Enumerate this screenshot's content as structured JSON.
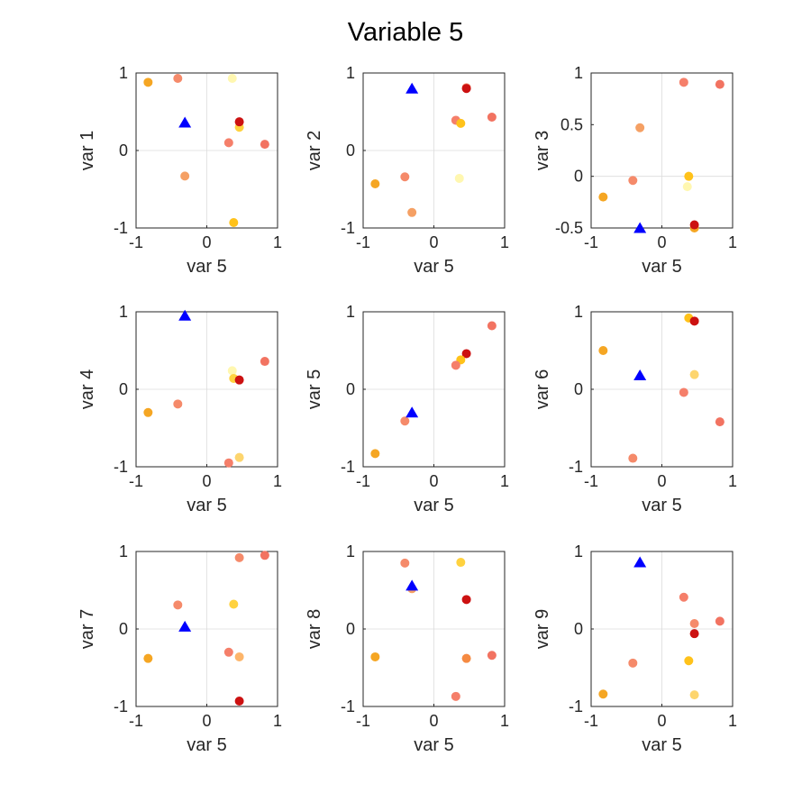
{
  "figure": {
    "title": "Variable 5"
  },
  "colors": {
    "highlight": "#0000ff",
    "axis": "#262626",
    "zeroline": "#dcdcdc",
    "points": [
      "#f5a623",
      "#f58a6a",
      "#fff7b0",
      "#ffd23f",
      "#cc1111",
      "#f57f6a",
      "#f27361",
      "#fdd56e",
      "#f46c6a"
    ]
  },
  "chart_data": [
    {
      "type": "scatter",
      "xlabel": "var 5",
      "ylabel": "var 1",
      "xlim": [
        -1,
        1
      ],
      "ylim": [
        -1,
        1
      ],
      "xticks": [
        -1,
        0,
        1
      ],
      "yticks": [
        -1,
        0,
        1
      ],
      "xtick_labels": [
        "-1",
        "0",
        "1"
      ],
      "ytick_labels": [
        "-1",
        "0",
        "1"
      ],
      "points": [
        {
          "x": -0.83,
          "y": 0.88,
          "color": "#f5a623"
        },
        {
          "x": -0.41,
          "y": 0.93,
          "color": "#f58a6a"
        },
        {
          "x": 0.36,
          "y": 0.93,
          "color": "#fff7b0"
        },
        {
          "x": 0.46,
          "y": 0.3,
          "color": "#ffd23f"
        },
        {
          "x": 0.46,
          "y": 0.37,
          "color": "#cc1111"
        },
        {
          "x": 0.31,
          "y": 0.1,
          "color": "#f57f6a"
        },
        {
          "x": 0.82,
          "y": 0.08,
          "color": "#f27361"
        },
        {
          "x": -0.31,
          "y": -0.33,
          "color": "#f5a064"
        },
        {
          "x": 0.38,
          "y": -0.93,
          "color": "#ffc21a"
        }
      ],
      "highlight": {
        "x": -0.31,
        "y": 0.36
      }
    },
    {
      "type": "scatter",
      "xlabel": "var 5",
      "ylabel": "var 2",
      "xlim": [
        -1,
        1
      ],
      "ylim": [
        -1,
        1
      ],
      "xticks": [
        -1,
        0,
        1
      ],
      "yticks": [
        -1,
        0,
        1
      ],
      "xtick_labels": [
        "-1",
        "0",
        "1"
      ],
      "ytick_labels": [
        "-1",
        "0",
        "1"
      ],
      "points": [
        {
          "x": 0.46,
          "y": 0.81,
          "color": "#f58a6a"
        },
        {
          "x": 0.46,
          "y": 0.8,
          "color": "#cc1111"
        },
        {
          "x": 0.82,
          "y": 0.43,
          "color": "#f27361"
        },
        {
          "x": 0.31,
          "y": 0.39,
          "color": "#f57f6a"
        },
        {
          "x": 0.38,
          "y": 0.35,
          "color": "#ffc21a"
        },
        {
          "x": 0.36,
          "y": -0.36,
          "color": "#fff7b0"
        },
        {
          "x": -0.41,
          "y": -0.34,
          "color": "#f58a6a"
        },
        {
          "x": -0.83,
          "y": -0.43,
          "color": "#f5a623"
        },
        {
          "x": -0.31,
          "y": -0.8,
          "color": "#f5a064"
        }
      ],
      "highlight": {
        "x": -0.31,
        "y": 0.8
      }
    },
    {
      "type": "scatter",
      "xlabel": "var 5",
      "ylabel": "var 3",
      "xlim": [
        -1,
        1
      ],
      "ylim": [
        -0.5,
        1
      ],
      "xticks": [
        -1,
        0,
        1
      ],
      "yticks": [
        -0.5,
        0,
        0.5,
        1
      ],
      "xtick_labels": [
        "-1",
        "0",
        "1"
      ],
      "ytick_labels": [
        "-0.5",
        "0",
        "0.5",
        "1"
      ],
      "points": [
        {
          "x": 0.31,
          "y": 0.91,
          "color": "#f57f6a"
        },
        {
          "x": 0.82,
          "y": 0.89,
          "color": "#f27361"
        },
        {
          "x": -0.31,
          "y": 0.47,
          "color": "#f5a064"
        },
        {
          "x": 0.38,
          "y": 0.0,
          "color": "#ffc21a"
        },
        {
          "x": -0.41,
          "y": -0.04,
          "color": "#f58a6a"
        },
        {
          "x": 0.36,
          "y": -0.1,
          "color": "#fff7b0"
        },
        {
          "x": -0.83,
          "y": -0.2,
          "color": "#f5a623"
        },
        {
          "x": 0.46,
          "y": -0.5,
          "color": "#f5a623"
        },
        {
          "x": 0.46,
          "y": -0.47,
          "color": "#cc1111"
        }
      ],
      "highlight": {
        "x": -0.31,
        "y": -0.5
      }
    },
    {
      "type": "scatter",
      "xlabel": "var 5",
      "ylabel": "var 4",
      "xlim": [
        -1,
        1
      ],
      "ylim": [
        -1,
        1
      ],
      "xticks": [
        -1,
        0,
        1
      ],
      "yticks": [
        -1,
        0,
        1
      ],
      "xtick_labels": [
        "-1",
        "0",
        "1"
      ],
      "ytick_labels": [
        "-1",
        "0",
        "1"
      ],
      "points": [
        {
          "x": 0.82,
          "y": 0.36,
          "color": "#f27361"
        },
        {
          "x": 0.36,
          "y": 0.24,
          "color": "#fff7b0"
        },
        {
          "x": 0.38,
          "y": 0.14,
          "color": "#ffd23f"
        },
        {
          "x": 0.46,
          "y": 0.12,
          "color": "#cc1111"
        },
        {
          "x": -0.41,
          "y": -0.19,
          "color": "#f58a6a"
        },
        {
          "x": -0.83,
          "y": -0.3,
          "color": "#f5a623"
        },
        {
          "x": 0.46,
          "y": -0.88,
          "color": "#fdd56e"
        },
        {
          "x": 0.31,
          "y": -0.95,
          "color": "#f57f6a"
        }
      ],
      "highlight": {
        "x": -0.31,
        "y": 0.95
      }
    },
    {
      "type": "scatter",
      "xlabel": "var 5",
      "ylabel": "var 5",
      "xlim": [
        -1,
        1
      ],
      "ylim": [
        -1,
        1
      ],
      "xticks": [
        -1,
        0,
        1
      ],
      "yticks": [
        -1,
        0,
        1
      ],
      "xtick_labels": [
        "-1",
        "0",
        "1"
      ],
      "ytick_labels": [
        "-1",
        "0",
        "1"
      ],
      "points": [
        {
          "x": 0.82,
          "y": 0.82,
          "color": "#f27361"
        },
        {
          "x": 0.46,
          "y": 0.46,
          "color": "#cc1111"
        },
        {
          "x": 0.38,
          "y": 0.38,
          "color": "#ffc21a"
        },
        {
          "x": 0.31,
          "y": 0.31,
          "color": "#f57f6a"
        },
        {
          "x": -0.41,
          "y": -0.41,
          "color": "#f58a6a"
        },
        {
          "x": -0.83,
          "y": -0.83,
          "color": "#f5a623"
        }
      ],
      "highlight": {
        "x": -0.31,
        "y": -0.3
      }
    },
    {
      "type": "scatter",
      "xlabel": "var 5",
      "ylabel": "var 6",
      "xlim": [
        -1,
        1
      ],
      "ylim": [
        -1,
        1
      ],
      "xticks": [
        -1,
        0,
        1
      ],
      "yticks": [
        -1,
        0,
        1
      ],
      "xtick_labels": [
        "-1",
        "0",
        "1"
      ],
      "ytick_labels": [
        "-1",
        "0",
        "1"
      ],
      "points": [
        {
          "x": 0.38,
          "y": 0.92,
          "color": "#ffc21a"
        },
        {
          "x": 0.46,
          "y": 0.88,
          "color": "#cc1111"
        },
        {
          "x": -0.83,
          "y": 0.5,
          "color": "#f5a623"
        },
        {
          "x": 0.46,
          "y": 0.19,
          "color": "#fdd56e"
        },
        {
          "x": 0.31,
          "y": -0.04,
          "color": "#f57f6a"
        },
        {
          "x": 0.82,
          "y": -0.42,
          "color": "#f27361"
        },
        {
          "x": -0.41,
          "y": -0.89,
          "color": "#f58a6a"
        }
      ],
      "highlight": {
        "x": -0.31,
        "y": 0.18
      }
    },
    {
      "type": "scatter",
      "xlabel": "var 5",
      "ylabel": "var 7",
      "xlim": [
        -1,
        1
      ],
      "ylim": [
        -1,
        1
      ],
      "xticks": [
        -1,
        0,
        1
      ],
      "yticks": [
        -1,
        0,
        1
      ],
      "xtick_labels": [
        "-1",
        "0",
        "1"
      ],
      "ytick_labels": [
        "-1",
        "0",
        "1"
      ],
      "points": [
        {
          "x": 0.82,
          "y": 0.95,
          "color": "#f27361"
        },
        {
          "x": 0.46,
          "y": 0.92,
          "color": "#f58a6a"
        },
        {
          "x": -0.41,
          "y": 0.31,
          "color": "#f58a6a"
        },
        {
          "x": 0.38,
          "y": 0.32,
          "color": "#ffd23f"
        },
        {
          "x": 0.31,
          "y": -0.3,
          "color": "#f57f6a"
        },
        {
          "x": 0.46,
          "y": -0.36,
          "color": "#fdb56a"
        },
        {
          "x": -0.83,
          "y": -0.38,
          "color": "#f5a623"
        },
        {
          "x": 0.46,
          "y": -0.93,
          "color": "#cc1111"
        }
      ],
      "highlight": {
        "x": -0.31,
        "y": 0.03
      }
    },
    {
      "type": "scatter",
      "xlabel": "var 5",
      "ylabel": "var 8",
      "xlim": [
        -1,
        1
      ],
      "ylim": [
        -1,
        1
      ],
      "xticks": [
        -1,
        0,
        1
      ],
      "yticks": [
        -1,
        0,
        1
      ],
      "xtick_labels": [
        "-1",
        "0",
        "1"
      ],
      "ytick_labels": [
        "-1",
        "0",
        "1"
      ],
      "points": [
        {
          "x": -0.41,
          "y": 0.85,
          "color": "#f58a6a"
        },
        {
          "x": 0.38,
          "y": 0.86,
          "color": "#ffd23f"
        },
        {
          "x": -0.31,
          "y": 0.52,
          "color": "#f5a064"
        },
        {
          "x": 0.46,
          "y": 0.38,
          "color": "#cc1111"
        },
        {
          "x": -0.83,
          "y": -0.36,
          "color": "#f5a623"
        },
        {
          "x": 0.46,
          "y": -0.38,
          "color": "#f58a42"
        },
        {
          "x": 0.82,
          "y": -0.34,
          "color": "#f27361"
        },
        {
          "x": 0.31,
          "y": -0.87,
          "color": "#f57f6a"
        }
      ],
      "highlight": {
        "x": -0.31,
        "y": 0.56
      }
    },
    {
      "type": "scatter",
      "xlabel": "var 5",
      "ylabel": "var 9",
      "xlim": [
        -1,
        1
      ],
      "ylim": [
        -1,
        1
      ],
      "xticks": [
        -1,
        0,
        1
      ],
      "yticks": [
        -1,
        0,
        1
      ],
      "xtick_labels": [
        "-1",
        "0",
        "1"
      ],
      "ytick_labels": [
        "-1",
        "0",
        "1"
      ],
      "points": [
        {
          "x": 0.31,
          "y": 0.41,
          "color": "#f57f6a"
        },
        {
          "x": 0.82,
          "y": 0.1,
          "color": "#f27361"
        },
        {
          "x": 0.46,
          "y": 0.07,
          "color": "#f58a6a"
        },
        {
          "x": 0.46,
          "y": -0.06,
          "color": "#cc1111"
        },
        {
          "x": -0.41,
          "y": -0.44,
          "color": "#f58a6a"
        },
        {
          "x": 0.38,
          "y": -0.41,
          "color": "#ffc21a"
        },
        {
          "x": -0.83,
          "y": -0.84,
          "color": "#f5a623"
        },
        {
          "x": 0.46,
          "y": -0.85,
          "color": "#fdd56e"
        }
      ],
      "highlight": {
        "x": -0.31,
        "y": 0.86
      }
    }
  ]
}
